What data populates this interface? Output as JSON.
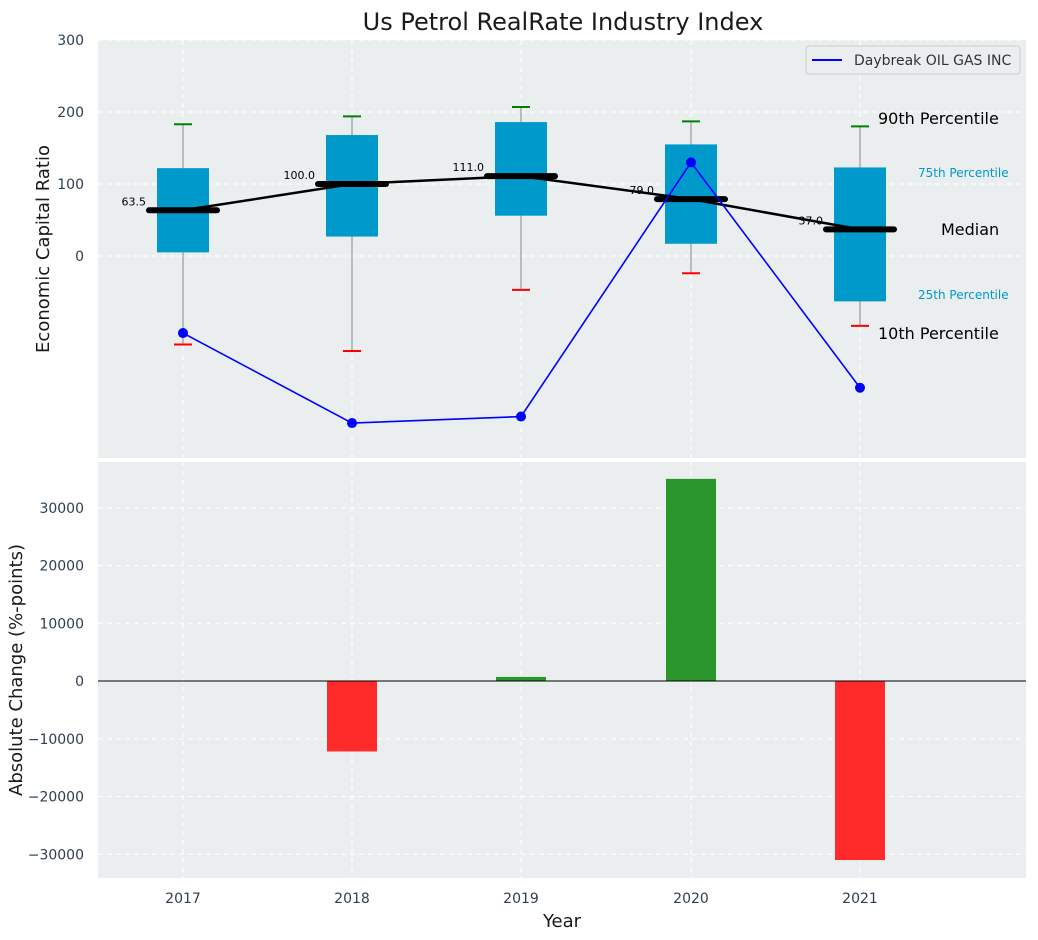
{
  "chart_data": [
    {
      "type": "box",
      "title": "Us Petrol RealRate Industry Index",
      "ylabel": "Economic Capital Ratio",
      "categories": [
        "2017",
        "2018",
        "2019",
        "2020",
        "2021"
      ],
      "ylim": [
        -270,
        300
      ],
      "yticks": [
        "300",
        "200",
        "100",
        "0"
      ],
      "grid": true,
      "legend": {
        "placement": "top-right",
        "entries": [
          "Daybreak OIL GAS INC"
        ]
      },
      "boxes": [
        {
          "year": "2017",
          "p10": -123,
          "p25": 5,
          "median": 63.5,
          "p75": 122,
          "p90": 183,
          "median_label": "63.5"
        },
        {
          "year": "2018",
          "p10": -132,
          "p25": 27,
          "median": 100.0,
          "p75": 168,
          "p90": 194,
          "median_label": "100.0"
        },
        {
          "year": "2019",
          "p10": -47,
          "p25": 56,
          "median": 111.0,
          "p75": 186,
          "p90": 207,
          "median_label": "111.0"
        },
        {
          "year": "2020",
          "p10": -24,
          "p25": 17,
          "median": 79.0,
          "p75": 155,
          "p90": 187,
          "median_label": "79.0"
        },
        {
          "year": "2021",
          "p10": -97,
          "p25": -63,
          "median": 37.0,
          "p75": 123,
          "p90": 180,
          "median_label": "37.0"
        }
      ],
      "series": [
        {
          "name": "Daybreak OIL GAS INC",
          "color": "#0000ff",
          "values": [
            -107,
            -232,
            -223,
            130,
            -183
          ]
        }
      ],
      "annotations": {
        "p90": "90th Percentile",
        "p75": "75th Percentile",
        "median": "Median",
        "p25": "25th Percentile",
        "p10": "10th Percentile"
      },
      "colors": {
        "box": "#0099cc",
        "median": "#000000",
        "p90_cap": "#008000",
        "p10_cap": "#ff0000",
        "small_labels": "#0099cc"
      }
    },
    {
      "type": "bar",
      "ylabel": "Absolute Change (%-points)",
      "xlabel": "Year",
      "categories": [
        "2017",
        "2018",
        "2019",
        "2020",
        "2021"
      ],
      "values": [
        0,
        -12200,
        700,
        35000,
        -31000
      ],
      "ylim": [
        -34000,
        38500
      ],
      "yticks": [
        "30000",
        "20000",
        "10000",
        "0",
        "−10000",
        "−20000",
        "−30000"
      ],
      "grid": true,
      "colors": {
        "positive": "#2a952a",
        "negative": "#ff2a2a"
      }
    }
  ]
}
